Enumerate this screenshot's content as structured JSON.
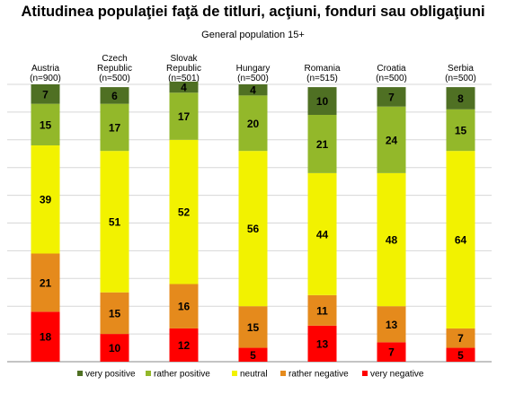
{
  "chart_data": {
    "type": "bar",
    "stacked": true,
    "orientation": "vertical",
    "title": "Atitudinea populaţiei faţă de titluri, acţiuni, fonduri sau obligaţiuni",
    "subtitle": "General population 15+",
    "categories": [
      [
        "Austria",
        "(n=900)"
      ],
      [
        "Czech",
        "Republic",
        "(n=500)"
      ],
      [
        "Slovak",
        "Republic",
        "(n=501)"
      ],
      [
        "Hungary",
        "(n=500)"
      ],
      [
        "Romania",
        "(n=515)"
      ],
      [
        "Croatia",
        "(n=500)"
      ],
      [
        "Serbia",
        "(n=500)"
      ]
    ],
    "series": [
      {
        "name": "very negative",
        "color": "#ff0000",
        "values": [
          18,
          10,
          12,
          5,
          13,
          7,
          5
        ]
      },
      {
        "name": "rather negative",
        "color": "#e58a1c",
        "values": [
          21,
          15,
          16,
          15,
          11,
          13,
          7
        ]
      },
      {
        "name": "neutral",
        "color": "#f2f200",
        "values": [
          39,
          51,
          52,
          56,
          44,
          48,
          64
        ]
      },
      {
        "name": "rather positive",
        "color": "#93b82a",
        "values": [
          15,
          17,
          17,
          20,
          21,
          24,
          15
        ]
      },
      {
        "name": "very positive",
        "color": "#4f7023",
        "values": [
          7,
          6,
          4,
          4,
          10,
          7,
          8
        ]
      }
    ],
    "legend": {
      "position": "bottom",
      "order": [
        "very positive",
        "rather positive",
        "neutral",
        "rather negative",
        "very negative"
      ]
    },
    "ylim": [
      0,
      100
    ],
    "grid": true
  }
}
